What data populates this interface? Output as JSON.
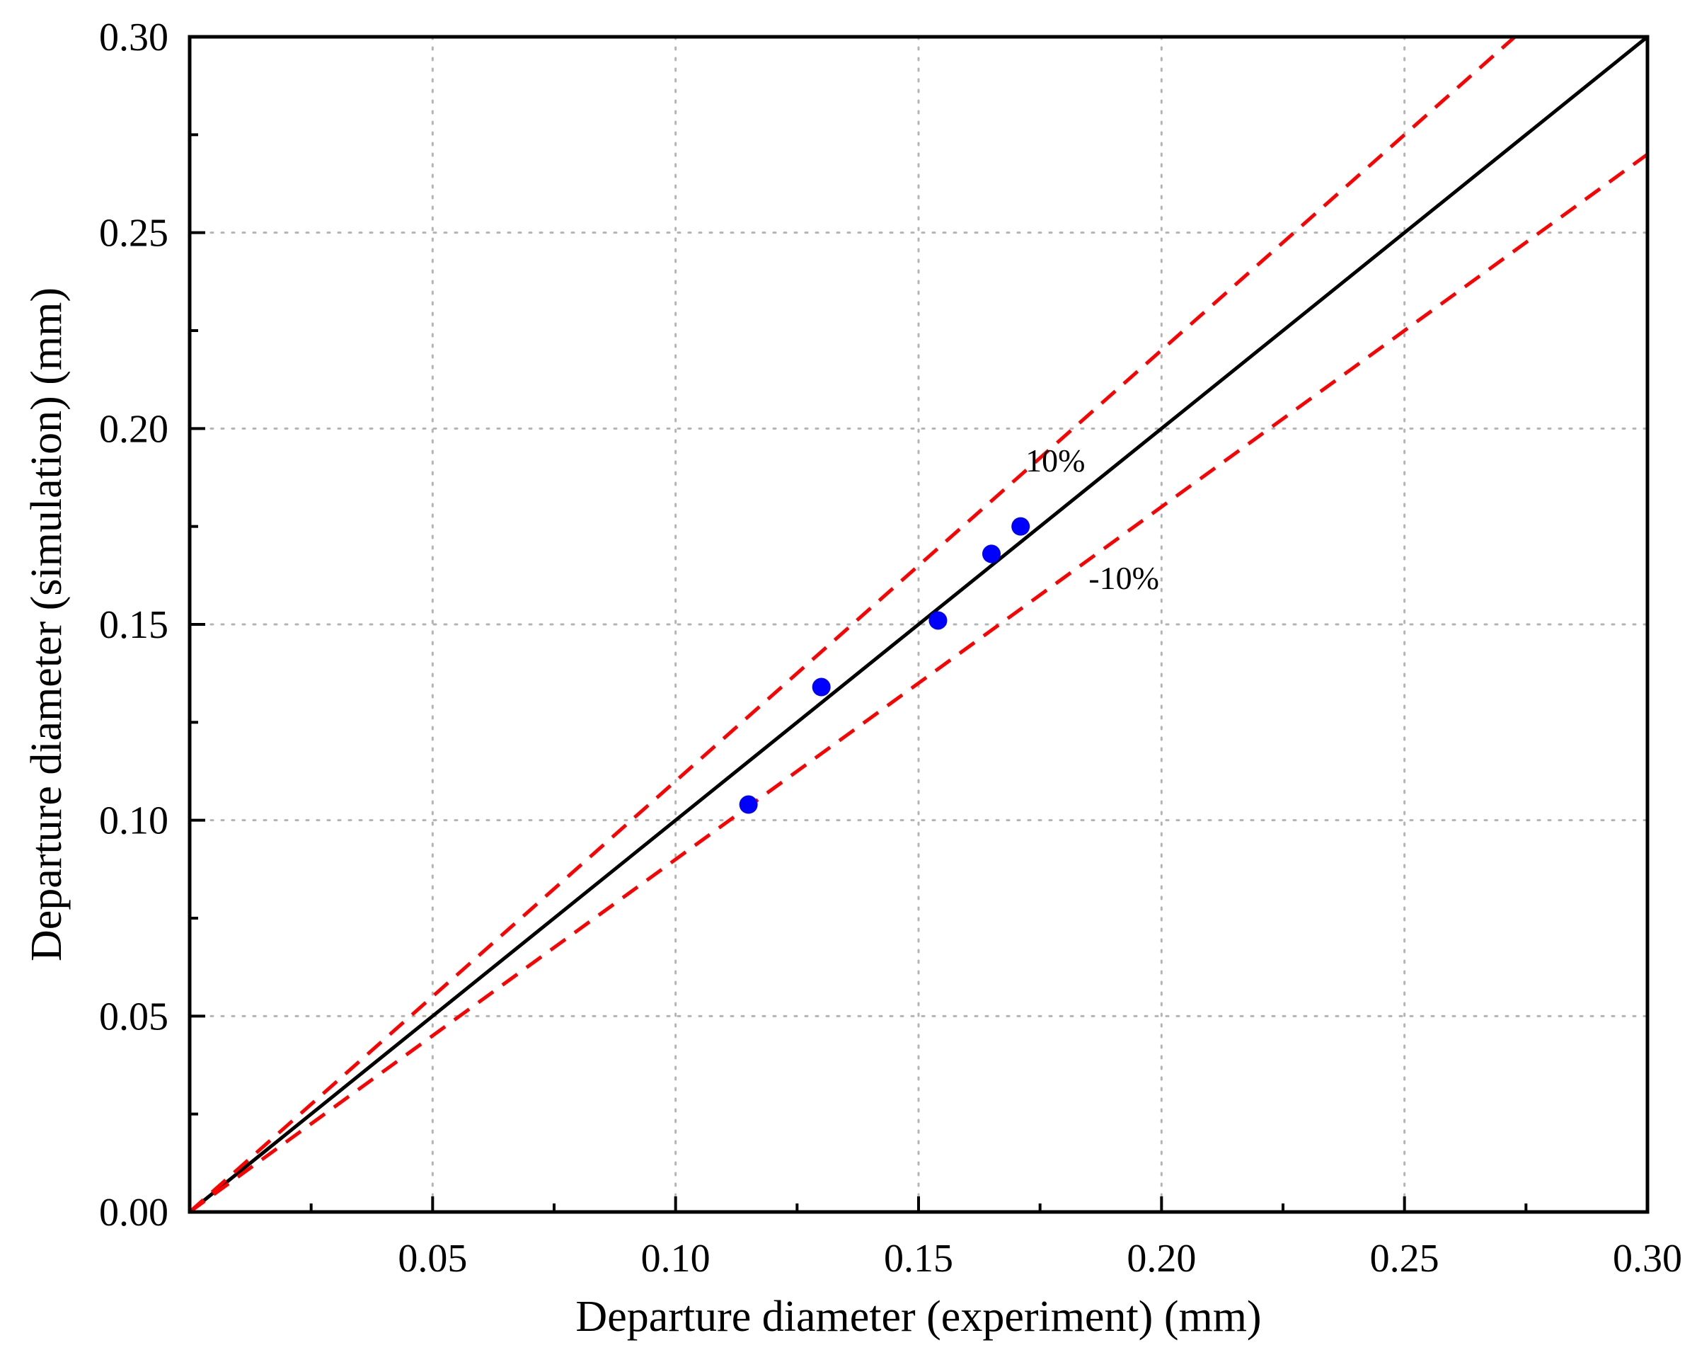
{
  "chart_data": {
    "type": "scatter",
    "title": "",
    "xlabel": "Departure diameter (experiment) (mm)",
    "ylabel": "Departure diameter (simulation) (mm)",
    "xlim": [
      0,
      0.3
    ],
    "ylim": [
      0,
      0.3
    ],
    "grid": true,
    "x_ticks": [
      0.05,
      0.1,
      0.15,
      0.2,
      0.25,
      0.3
    ],
    "x_tick_labels": [
      "0.05",
      "0.10",
      "0.15",
      "0.20",
      "0.25",
      "0.30"
    ],
    "y_ticks": [
      0.0,
      0.05,
      0.1,
      0.15,
      0.2,
      0.25,
      0.3
    ],
    "y_tick_labels": [
      "0.00",
      "0.05",
      "0.10",
      "0.15",
      "0.20",
      "0.25",
      "0.30"
    ],
    "series": [
      {
        "name": "data",
        "kind": "scatter",
        "color": "#0000ff",
        "x": [
          0.115,
          0.13,
          0.154,
          0.165,
          0.171
        ],
        "y": [
          0.104,
          0.134,
          0.151,
          0.168,
          0.175
        ]
      }
    ],
    "reference_lines": [
      {
        "name": "y = x",
        "slope": 1.0,
        "style": "solid",
        "color": "#000000"
      },
      {
        "name": "+10%",
        "slope": 1.1,
        "style": "dashed",
        "color": "#ff0000"
      },
      {
        "name": "-10%",
        "slope": 0.9,
        "style": "dashed",
        "color": "#ff0000"
      }
    ],
    "annotations": [
      {
        "text": "10%",
        "x": 0.172,
        "y": 0.189
      },
      {
        "text": "-10%",
        "x": 0.185,
        "y": 0.159
      }
    ]
  }
}
